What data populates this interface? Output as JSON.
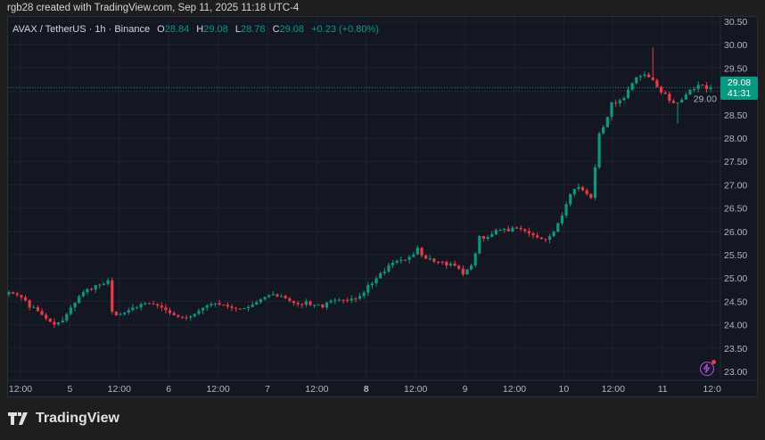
{
  "credit": "rgb28 created with TradingView.com, Sep 11, 2025 11:18 UTC-4",
  "legend": {
    "symbol": "AVAX / TetherUS · 1h · Binance",
    "o_label": "O",
    "o": "28.84",
    "h_label": "H",
    "h": "29.08",
    "l_label": "L",
    "l": "28.78",
    "c_label": "C",
    "c": "29.08",
    "change": "+0.23 (+0.80%)"
  },
  "current_price": {
    "price": "29.08",
    "countdown": "41:31"
  },
  "footer": {
    "brand": "TradingView"
  },
  "colors": {
    "up": "#089981",
    "down": "#f23645",
    "bg": "#131722",
    "grid": "#1e2230"
  },
  "chart_data": {
    "type": "candlestick",
    "title": "AVAX / TetherUS · 1h · Binance",
    "ylim": [
      22.8,
      30.6
    ],
    "y_ticks": [
      "30.50",
      "30.00",
      "29.50",
      "29.00",
      "28.50",
      "28.00",
      "27.50",
      "27.00",
      "26.50",
      "26.00",
      "25.50",
      "25.00",
      "24.50",
      "24.00",
      "23.50",
      "23.00"
    ],
    "x_ticks": [
      "12:00",
      "5",
      "12:00",
      "6",
      "12:00",
      "7",
      "12:00",
      "8",
      "12:00",
      "9",
      "12:00",
      "10",
      "12:00",
      "11",
      "12:0"
    ],
    "hours": 171,
    "close_anchors": [
      [
        0,
        24.7
      ],
      [
        5,
        24.37
      ],
      [
        12,
        24.05
      ],
      [
        16,
        24.47
      ],
      [
        20,
        24.75
      ],
      [
        24,
        24.95
      ],
      [
        25,
        24.28
      ],
      [
        31,
        24.37
      ],
      [
        37,
        24.37
      ],
      [
        44,
        24.18
      ],
      [
        51,
        24.43
      ],
      [
        59,
        24.43
      ],
      [
        65,
        24.6
      ],
      [
        72,
        24.5
      ],
      [
        76,
        24.37
      ],
      [
        83,
        24.56
      ],
      [
        87,
        24.85
      ],
      [
        91,
        25.14
      ],
      [
        96,
        25.39
      ],
      [
        99,
        25.65
      ],
      [
        102,
        25.42
      ],
      [
        106,
        25.27
      ],
      [
        110,
        25.08
      ],
      [
        112,
        25.27
      ],
      [
        114,
        25.9
      ],
      [
        118,
        26.03
      ],
      [
        121,
        26.0
      ],
      [
        126,
        25.96
      ],
      [
        131,
        25.9
      ],
      [
        134,
        26.34
      ],
      [
        137,
        26.91
      ],
      [
        141,
        26.72
      ],
      [
        143,
        28.1
      ],
      [
        146,
        28.76
      ],
      [
        149,
        28.86
      ],
      [
        153,
        29.33
      ],
      [
        156,
        29.24
      ],
      [
        159,
        28.95
      ],
      [
        162,
        28.76
      ],
      [
        166,
        29.05
      ],
      [
        169,
        29.05
      ],
      [
        170,
        29.08
      ]
    ]
  }
}
